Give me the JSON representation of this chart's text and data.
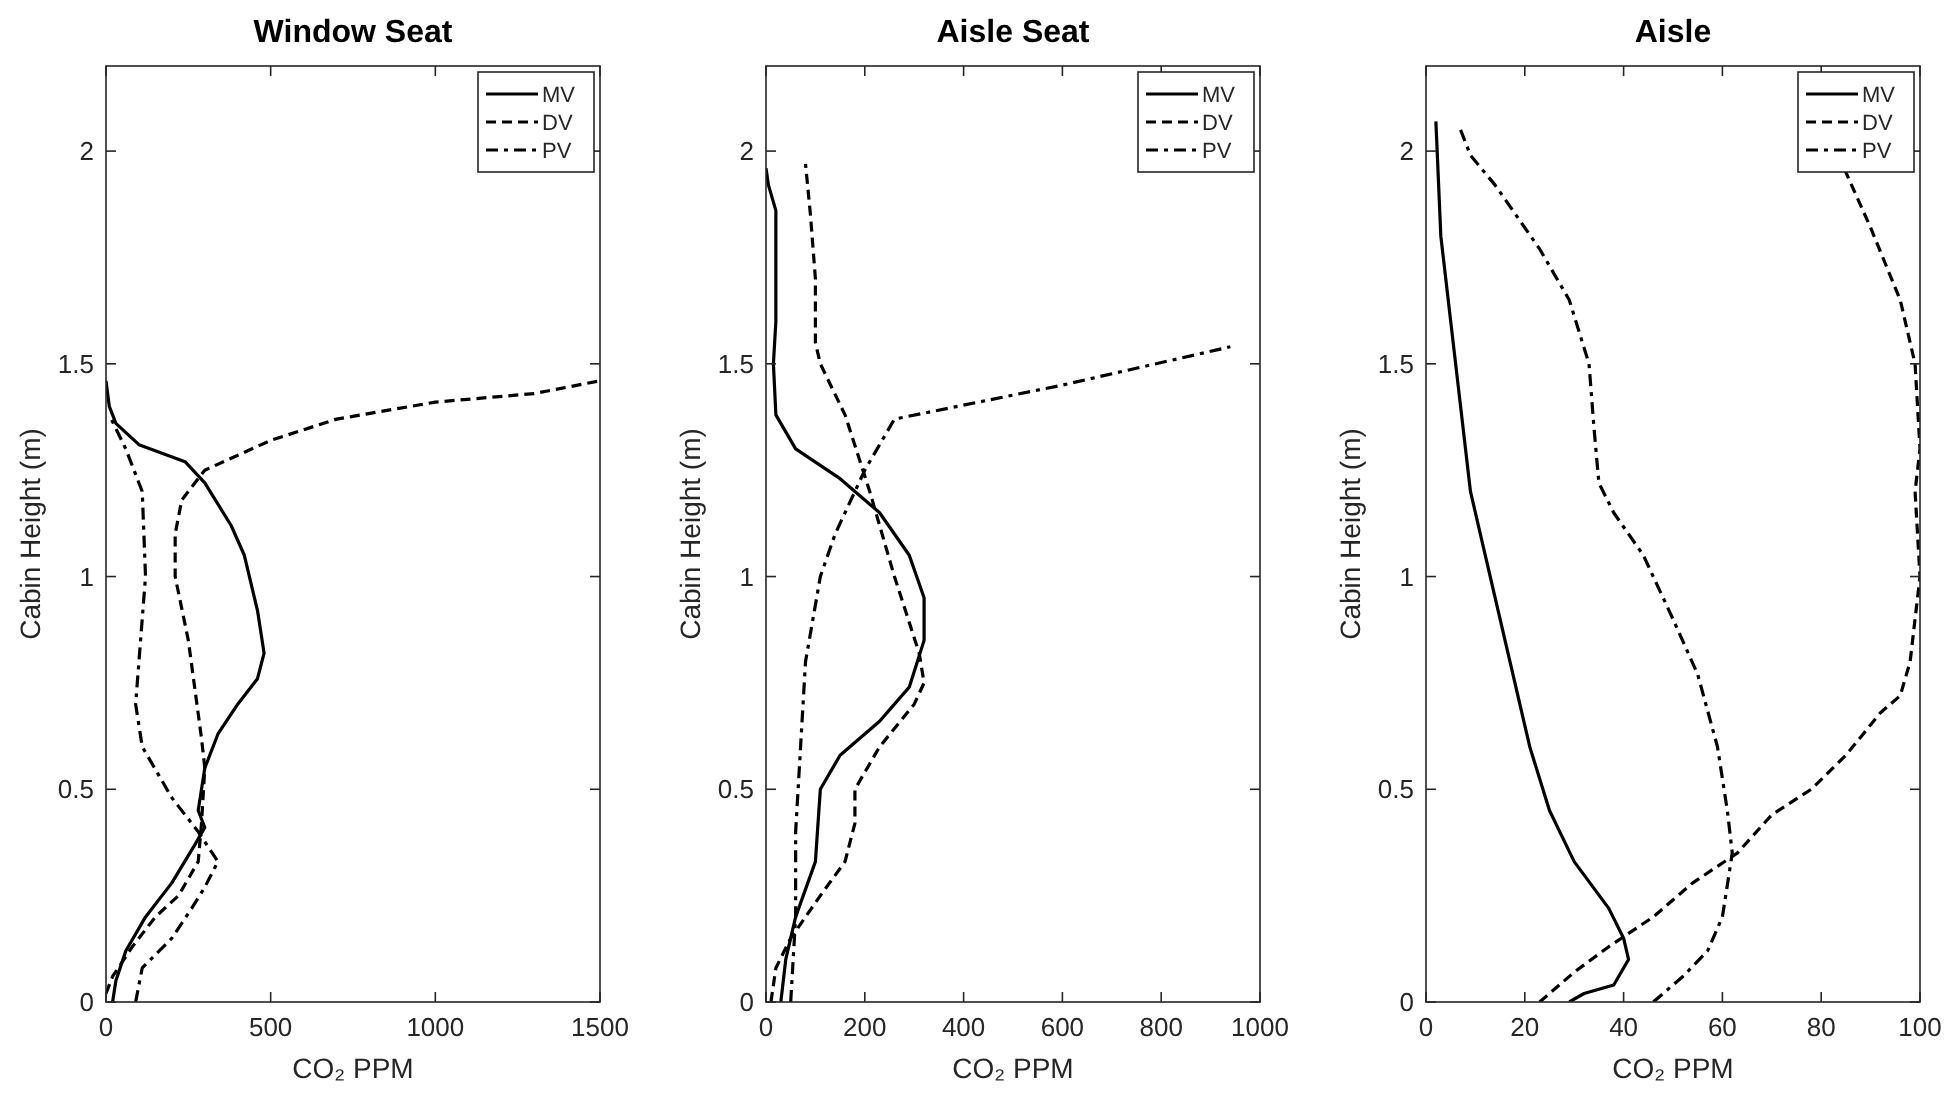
{
  "chart_data": [
    {
      "type": "line",
      "title": "Window Seat",
      "xlabel": "CO₂ PPM",
      "ylabel": "Cabin Height (m)",
      "xlim": [
        0,
        1500
      ],
      "xticks": [
        0,
        500,
        1000,
        1500
      ],
      "ylim": [
        0,
        2.2
      ],
      "yticks": [
        0,
        0.5,
        1,
        1.5,
        2
      ],
      "legend": "top right",
      "grid": false,
      "series": [
        {
          "name": "MV",
          "color": "#000000",
          "line_style": "solid",
          "x": [
            20,
            30,
            60,
            120,
            200,
            270,
            300,
            280,
            300,
            340,
            400,
            460,
            480,
            460,
            420,
            380,
            300,
            240,
            100,
            30,
            10,
            0
          ],
          "values": [
            0,
            0.05,
            0.12,
            0.2,
            0.28,
            0.37,
            0.41,
            0.45,
            0.55,
            0.63,
            0.7,
            0.76,
            0.82,
            0.92,
            1.05,
            1.12,
            1.22,
            1.27,
            1.31,
            1.36,
            1.4,
            1.46
          ]
        },
        {
          "name": "DV",
          "color": "#000000",
          "line_style": "dashed",
          "x": [
            0,
            20,
            80,
            150,
            220,
            280,
            290,
            300,
            290,
            250,
            210,
            210,
            230,
            300,
            500,
            700,
            1000,
            1300,
            1500
          ],
          "values": [
            0.02,
            0.06,
            0.13,
            0.2,
            0.25,
            0.33,
            0.42,
            0.55,
            0.62,
            0.85,
            1.0,
            1.1,
            1.18,
            1.25,
            1.32,
            1.37,
            1.41,
            1.43,
            1.46
          ]
        },
        {
          "name": "PV",
          "color": "#000000",
          "line_style": "dashdot",
          "x": [
            90,
            110,
            200,
            260,
            300,
            340,
            280,
            200,
            110,
            90,
            110,
            120,
            110,
            60,
            10
          ],
          "values": [
            0,
            0.08,
            0.15,
            0.22,
            0.27,
            0.33,
            0.4,
            0.48,
            0.6,
            0.7,
            0.9,
            1.0,
            1.2,
            1.3,
            1.38
          ]
        }
      ]
    },
    {
      "type": "line",
      "title": "Aisle Seat",
      "xlabel": "CO₂ PPM",
      "ylabel": "Cabin Height (m)",
      "xlim": [
        0,
        1000
      ],
      "xticks": [
        0,
        200,
        400,
        600,
        800,
        1000
      ],
      "ylim": [
        0,
        2.2
      ],
      "yticks": [
        0,
        0.5,
        1,
        1.5,
        2
      ],
      "legend": "top right",
      "grid": false,
      "series": [
        {
          "name": "MV",
          "color": "#000000",
          "line_style": "solid",
          "x": [
            30,
            40,
            60,
            100,
            110,
            150,
            230,
            290,
            320,
            320,
            290,
            230,
            150,
            60,
            20,
            15,
            20,
            20,
            5,
            0
          ],
          "values": [
            0,
            0.1,
            0.2,
            0.33,
            0.5,
            0.58,
            0.66,
            0.74,
            0.85,
            0.95,
            1.05,
            1.15,
            1.23,
            1.3,
            1.38,
            1.5,
            1.6,
            1.86,
            1.92,
            1.96
          ]
        },
        {
          "name": "DV",
          "color": "#000000",
          "line_style": "dashed",
          "x": [
            10,
            20,
            50,
            110,
            160,
            180,
            180,
            230,
            300,
            320,
            310,
            260,
            210,
            160,
            110,
            100,
            100,
            90,
            80
          ],
          "values": [
            0,
            0.08,
            0.15,
            0.25,
            0.33,
            0.42,
            0.5,
            0.6,
            0.7,
            0.75,
            0.82,
            1.0,
            1.2,
            1.38,
            1.5,
            1.55,
            1.7,
            1.85,
            1.97
          ]
        },
        {
          "name": "PV",
          "color": "#000000",
          "line_style": "dashdot",
          "x": [
            50,
            60,
            60,
            70,
            80,
            110,
            140,
            200,
            260,
            600,
            940
          ],
          "values": [
            0,
            0.2,
            0.4,
            0.6,
            0.8,
            1.0,
            1.1,
            1.25,
            1.37,
            1.45,
            1.54
          ]
        }
      ]
    },
    {
      "type": "line",
      "title": "Aisle",
      "xlabel": "CO₂ PPM",
      "ylabel": "Cabin Height (m)",
      "xlim": [
        0,
        100
      ],
      "xticks": [
        0,
        20,
        40,
        60,
        80,
        100
      ],
      "ylim": [
        0,
        2.2
      ],
      "yticks": [
        0,
        0.5,
        1,
        1.5,
        2
      ],
      "legend": "top right",
      "grid": false,
      "series": [
        {
          "name": "MV",
          "color": "#000000",
          "line_style": "solid",
          "x": [
            29,
            32,
            38,
            41,
            40,
            37,
            30,
            25,
            21,
            17,
            13,
            9,
            6,
            3,
            2
          ],
          "values": [
            0,
            0.02,
            0.04,
            0.1,
            0.15,
            0.22,
            0.33,
            0.45,
            0.6,
            0.8,
            1.0,
            1.2,
            1.5,
            1.8,
            2.07
          ]
        },
        {
          "name": "DV",
          "color": "#000000",
          "line_style": "dashed",
          "x": [
            23,
            30,
            37,
            46,
            54,
            63,
            70,
            78,
            85,
            92,
            96,
            98,
            99,
            100,
            99,
            100,
            99,
            96,
            90,
            85,
            84
          ],
          "values": [
            0,
            0.07,
            0.13,
            0.2,
            0.28,
            0.35,
            0.44,
            0.5,
            0.58,
            0.68,
            0.72,
            0.8,
            0.9,
            1.0,
            1.2,
            1.3,
            1.5,
            1.65,
            1.82,
            1.95,
            2.0
          ]
        },
        {
          "name": "PV",
          "color": "#000000",
          "line_style": "dashdot",
          "x": [
            46,
            52,
            57,
            60,
            62,
            61,
            59,
            55,
            50,
            44,
            38,
            35,
            34,
            33,
            29,
            23,
            14,
            9,
            7
          ],
          "values": [
            0,
            0.06,
            0.12,
            0.2,
            0.35,
            0.45,
            0.6,
            0.77,
            0.9,
            1.05,
            1.15,
            1.22,
            1.35,
            1.5,
            1.65,
            1.77,
            1.92,
            1.99,
            2.05
          ]
        }
      ]
    }
  ]
}
